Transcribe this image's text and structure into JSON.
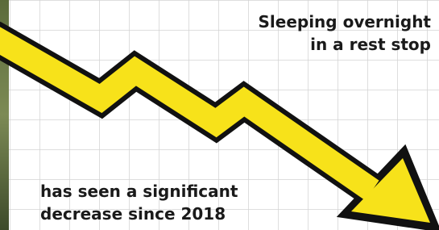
{
  "headline": {
    "lines": [
      "Sleeping overnight",
      "in a rest stop"
    ]
  },
  "caption": {
    "lines": [
      "has seen a significant",
      "decrease since 2018"
    ]
  }
}
